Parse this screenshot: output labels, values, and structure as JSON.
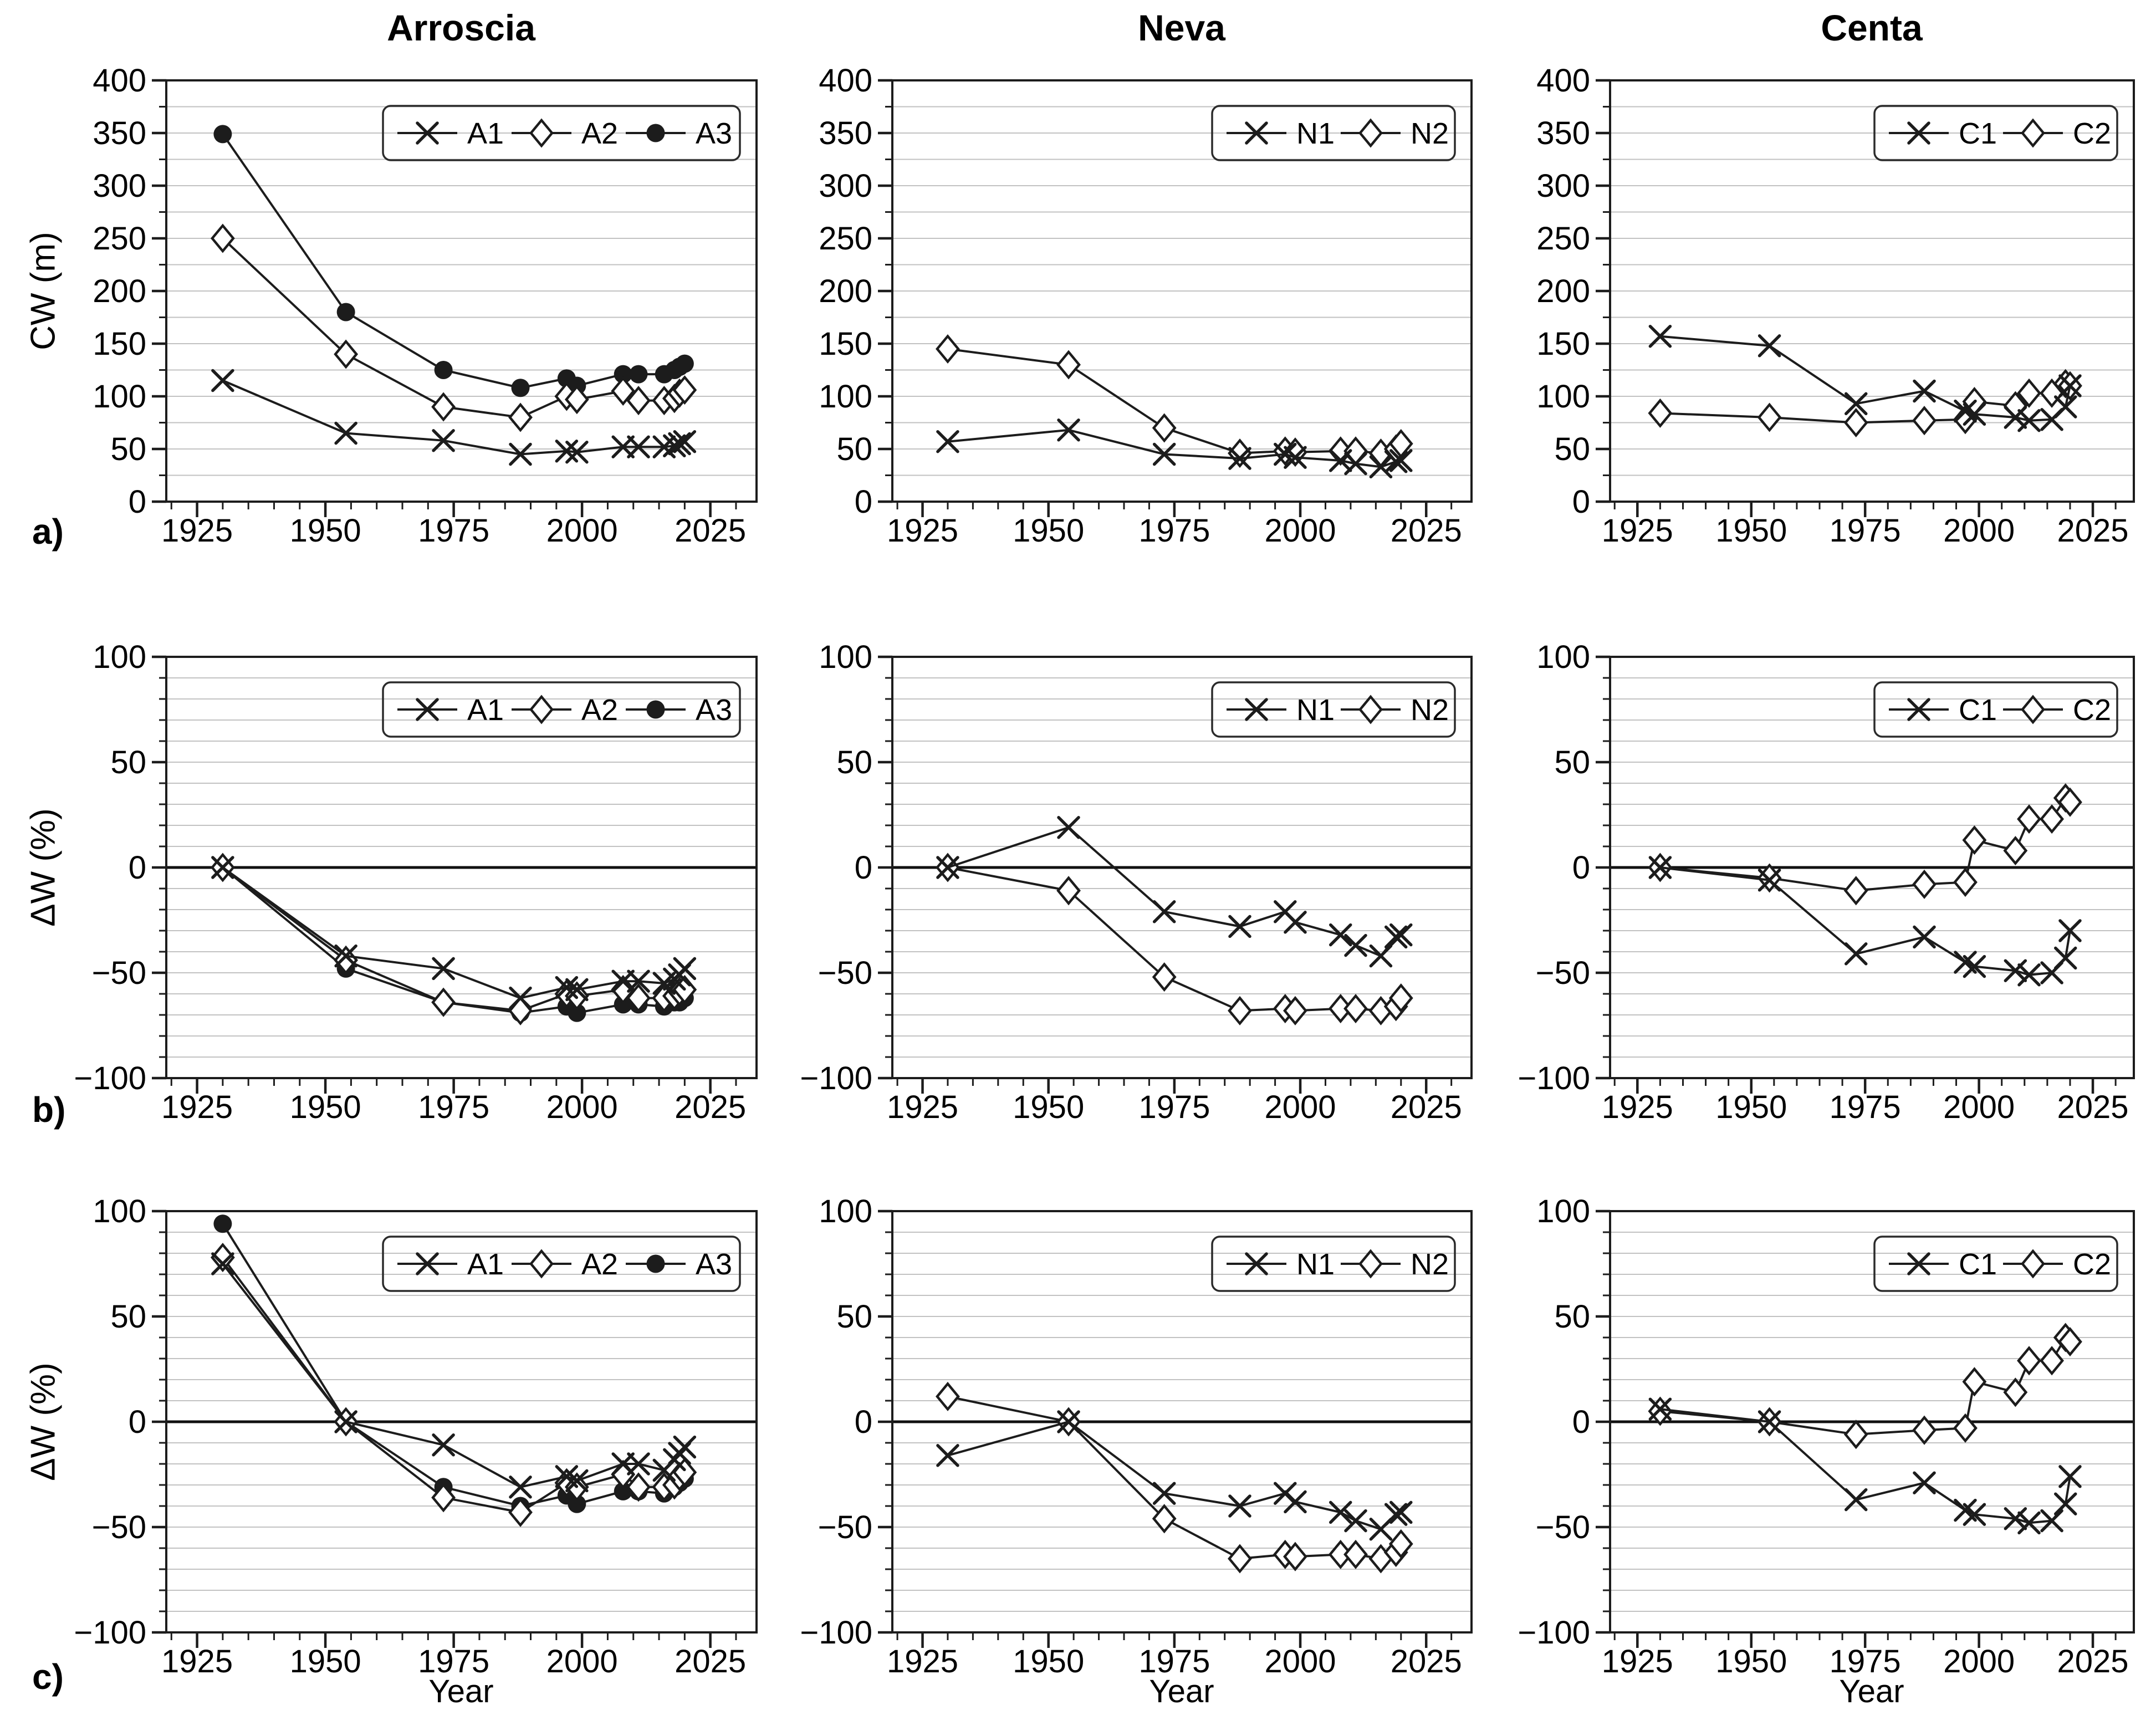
{
  "figure": {
    "columns": [
      {
        "title": "Arroscia",
        "legend": [
          "A1",
          "A2",
          "A3"
        ]
      },
      {
        "title": "Neva",
        "legend": [
          "N1",
          "N2"
        ]
      },
      {
        "title": "Centa",
        "legend": [
          "C1",
          "C2"
        ]
      }
    ],
    "rows": [
      {
        "label": "a)",
        "ylabel": "CW (m)",
        "ylim": [
          0,
          400
        ],
        "yticks": [
          0,
          50,
          100,
          150,
          200,
          250,
          300,
          350,
          400
        ],
        "grid_step": 25,
        "zero_line": false
      },
      {
        "label": "b)",
        "ylabel": "ΔW (%)",
        "ylim": [
          -100,
          100
        ],
        "yticks": [
          -100,
          -50,
          0,
          50,
          100
        ],
        "grid_step": 10,
        "zero_line": true
      },
      {
        "label": "c)",
        "ylabel": "ΔW (%)",
        "ylim": [
          -100,
          100
        ],
        "yticks": [
          -100,
          -50,
          0,
          50,
          100
        ],
        "grid_step": 10,
        "zero_line": true
      }
    ],
    "x_axis": {
      "title": "Year",
      "lim": [
        1919,
        2034
      ],
      "major_ticks": [
        1925,
        1950,
        1975,
        2000,
        2025
      ],
      "minor_step": 5
    },
    "colors": {
      "line": "#1c1c1c",
      "grid": "#c2c2c2",
      "zero": "#111111",
      "background": "#ffffff",
      "text": "#000000"
    }
  },
  "chart_data": [
    {
      "type": "line",
      "row": 0,
      "col": 0,
      "title": "Arroscia",
      "ylabel": "CW (m)",
      "series": [
        {
          "name": "A1",
          "marker": "x",
          "x": [
            1930,
            1954,
            1973,
            1988,
            1997,
            1999,
            2008,
            2011,
            2016,
            2018,
            2019,
            2020
          ],
          "y": [
            115,
            65,
            58,
            45,
            48,
            47,
            52,
            52,
            52,
            53,
            55,
            57
          ]
        },
        {
          "name": "A2",
          "marker": "diamond",
          "x": [
            1930,
            1954,
            1973,
            1988,
            1997,
            1999,
            2008,
            2011,
            2016,
            2018,
            2019,
            2020
          ],
          "y": [
            250,
            140,
            90,
            80,
            100,
            97,
            105,
            96,
            96,
            98,
            103,
            106
          ]
        },
        {
          "name": "A3",
          "marker": "circle",
          "x": [
            1930,
            1954,
            1973,
            1988,
            1997,
            1999,
            2008,
            2011,
            2016,
            2018,
            2019,
            2020
          ],
          "y": [
            349,
            180,
            125,
            108,
            117,
            110,
            121,
            121,
            121,
            125,
            128,
            131
          ]
        }
      ]
    },
    {
      "type": "line",
      "row": 0,
      "col": 1,
      "title": "Neva",
      "ylabel": "CW (m)",
      "series": [
        {
          "name": "N1",
          "marker": "x",
          "x": [
            1930,
            1954,
            1973,
            1988,
            1997,
            1999,
            2008,
            2011,
            2016,
            2019,
            2020
          ],
          "y": [
            57,
            68,
            45,
            41,
            45,
            42,
            39,
            36,
            33,
            38,
            39
          ]
        },
        {
          "name": "N2",
          "marker": "diamond",
          "x": [
            1930,
            1954,
            1973,
            1988,
            1997,
            1999,
            2008,
            2011,
            2016,
            2019,
            2020
          ],
          "y": [
            145,
            130,
            70,
            46,
            48,
            47,
            48,
            48,
            46,
            50,
            55
          ]
        }
      ]
    },
    {
      "type": "line",
      "row": 0,
      "col": 2,
      "title": "Centa",
      "ylabel": "CW (m)",
      "series": [
        {
          "name": "C1",
          "marker": "x",
          "x": [
            1930,
            1954,
            1973,
            1988,
            1997,
            1999,
            2008,
            2011,
            2016,
            2019,
            2020
          ],
          "y": [
            157,
            148,
            93,
            105,
            86,
            83,
            80,
            77,
            78,
            90,
            110
          ]
        },
        {
          "name": "C2",
          "marker": "diamond",
          "x": [
            1930,
            1954,
            1973,
            1988,
            1997,
            1999,
            2008,
            2011,
            2016,
            2019,
            2020
          ],
          "y": [
            84,
            80,
            75,
            77,
            78,
            95,
            91,
            103,
            103,
            112,
            110
          ]
        }
      ]
    },
    {
      "type": "line",
      "row": 1,
      "col": 0,
      "title": "Arroscia",
      "ylabel": "ΔW (%)",
      "series": [
        {
          "name": "A1",
          "marker": "x",
          "x": [
            1930,
            1954,
            1973,
            1988,
            1997,
            1999,
            2008,
            2011,
            2016,
            2018,
            2019,
            2020
          ],
          "y": [
            0,
            -42,
            -48,
            -62,
            -57,
            -58,
            -54,
            -54,
            -55,
            -53,
            -51,
            -48
          ]
        },
        {
          "name": "A2",
          "marker": "diamond",
          "x": [
            1930,
            1954,
            1973,
            1988,
            1997,
            1999,
            2008,
            2011,
            2016,
            2018,
            2019,
            2020
          ],
          "y": [
            0,
            -44,
            -64,
            -68,
            -60,
            -61,
            -58,
            -62,
            -62,
            -61,
            -59,
            -58
          ]
        },
        {
          "name": "A3",
          "marker": "circle",
          "x": [
            1930,
            1954,
            1973,
            1988,
            1997,
            1999,
            2008,
            2011,
            2016,
            2018,
            2019,
            2020
          ],
          "y": [
            0,
            -48,
            -64,
            -69,
            -66,
            -69,
            -65,
            -65,
            -66,
            -64,
            -64,
            -62
          ]
        }
      ]
    },
    {
      "type": "line",
      "row": 1,
      "col": 1,
      "title": "Neva",
      "ylabel": "ΔW (%)",
      "series": [
        {
          "name": "N1",
          "marker": "x",
          "x": [
            1930,
            1954,
            1973,
            1988,
            1997,
            1999,
            2008,
            2011,
            2016,
            2019,
            2020
          ],
          "y": [
            0,
            19,
            -21,
            -28,
            -21,
            -26,
            -32,
            -37,
            -42,
            -33,
            -32
          ]
        },
        {
          "name": "N2",
          "marker": "diamond",
          "x": [
            1930,
            1954,
            1973,
            1988,
            1997,
            1999,
            2008,
            2011,
            2016,
            2019,
            2020
          ],
          "y": [
            0,
            -11,
            -52,
            -68,
            -67,
            -68,
            -67,
            -67,
            -68,
            -66,
            -62
          ]
        }
      ]
    },
    {
      "type": "line",
      "row": 1,
      "col": 2,
      "title": "Centa",
      "ylabel": "ΔW (%)",
      "series": [
        {
          "name": "C1",
          "marker": "x",
          "x": [
            1930,
            1954,
            1973,
            1988,
            1997,
            1999,
            2008,
            2011,
            2016,
            2019,
            2020
          ],
          "y": [
            0,
            -6,
            -41,
            -33,
            -45,
            -47,
            -49,
            -51,
            -50,
            -43,
            -30
          ]
        },
        {
          "name": "C2",
          "marker": "diamond",
          "x": [
            1930,
            1954,
            1973,
            1988,
            1997,
            1999,
            2008,
            2011,
            2016,
            2019,
            2020
          ],
          "y": [
            0,
            -5,
            -11,
            -8,
            -7,
            13,
            8,
            23,
            23,
            33,
            31
          ]
        }
      ]
    },
    {
      "type": "line",
      "row": 2,
      "col": 0,
      "title": "Arroscia",
      "ylabel": "ΔW (%)",
      "series": [
        {
          "name": "A1",
          "marker": "x",
          "x": [
            1930,
            1954,
            1973,
            1988,
            1997,
            1999,
            2008,
            2011,
            2016,
            2018,
            2019,
            2020
          ],
          "y": [
            75,
            0,
            -11,
            -31,
            -26,
            -28,
            -20,
            -20,
            -23,
            -18,
            -15,
            -12
          ]
        },
        {
          "name": "A2",
          "marker": "diamond",
          "x": [
            1930,
            1954,
            1973,
            1988,
            1997,
            1999,
            2008,
            2011,
            2016,
            2018,
            2019,
            2020
          ],
          "y": [
            78,
            0,
            -36,
            -43,
            -29,
            -31,
            -25,
            -31,
            -31,
            -30,
            -26,
            -24
          ]
        },
        {
          "name": "A3",
          "marker": "circle",
          "x": [
            1930,
            1954,
            1973,
            1988,
            1997,
            1999,
            2008,
            2011,
            2016,
            2018,
            2019,
            2020
          ],
          "y": [
            94,
            0,
            -31,
            -40,
            -35,
            -39,
            -33,
            -33,
            -34,
            -31,
            -29,
            -27
          ]
        }
      ]
    },
    {
      "type": "line",
      "row": 2,
      "col": 1,
      "title": "Neva",
      "ylabel": "ΔW (%)",
      "series": [
        {
          "name": "N1",
          "marker": "x",
          "x": [
            1930,
            1954,
            1973,
            1988,
            1997,
            1999,
            2008,
            2011,
            2016,
            2019,
            2020
          ],
          "y": [
            -16,
            0,
            -34,
            -40,
            -34,
            -38,
            -43,
            -47,
            -51,
            -44,
            -43
          ]
        },
        {
          "name": "N2",
          "marker": "diamond",
          "x": [
            1930,
            1954,
            1973,
            1988,
            1997,
            1999,
            2008,
            2011,
            2016,
            2019,
            2020
          ],
          "y": [
            12,
            0,
            -46,
            -65,
            -63,
            -64,
            -63,
            -63,
            -65,
            -62,
            -58
          ]
        }
      ]
    },
    {
      "type": "line",
      "row": 2,
      "col": 2,
      "title": "Centa",
      "ylabel": "ΔW (%)",
      "series": [
        {
          "name": "C1",
          "marker": "x",
          "x": [
            1930,
            1954,
            1973,
            1988,
            1997,
            1999,
            2008,
            2011,
            2016,
            2019,
            2020
          ],
          "y": [
            6,
            0,
            -37,
            -29,
            -42,
            -44,
            -46,
            -48,
            -47,
            -39,
            -26
          ]
        },
        {
          "name": "C2",
          "marker": "diamond",
          "x": [
            1930,
            1954,
            1973,
            1988,
            1997,
            1999,
            2008,
            2011,
            2016,
            2019,
            2020
          ],
          "y": [
            5,
            0,
            -6,
            -4,
            -3,
            19,
            14,
            29,
            29,
            40,
            38
          ]
        }
      ]
    }
  ]
}
